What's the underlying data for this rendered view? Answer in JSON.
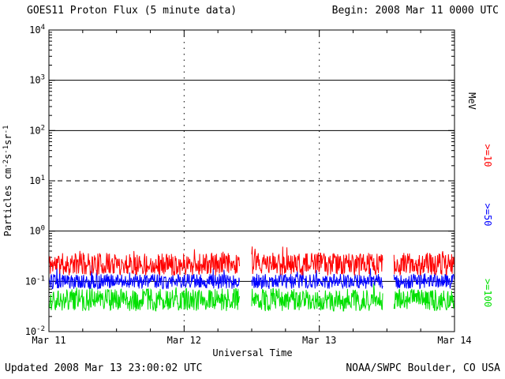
{
  "header": {
    "title": "GOES11 Proton Flux (5 minute data)",
    "begin_label": "Begin: 2008 Mar 11 0000 UTC"
  },
  "footer": {
    "updated": "Updated 2008 Mar 13 23:00:02 UTC",
    "credit": "NOAA/SWPC Boulder, CO USA"
  },
  "chart_data": {
    "type": "line",
    "title": "GOES11 Proton Flux (5 minute data)",
    "subtitle": "Begin: 2008 Mar 11 0000 UTC",
    "xlabel": "Universal Time",
    "ylabel": "Particles cm⁻²s⁻¹sr⁻¹",
    "ylabel_segments": [
      {
        "t": "Particles cm"
      },
      {
        "t": "-2",
        "sup": true
      },
      {
        "t": "s"
      },
      {
        "t": "-1",
        "sup": true
      },
      {
        "t": "sr"
      },
      {
        "t": "-1",
        "sup": true
      }
    ],
    "right_axis_unit": "MeV",
    "x_ticks": [
      "Mar 11",
      "Mar 12",
      "Mar 13",
      "Mar 14"
    ],
    "y_ticks": [
      {
        "base": "10",
        "exp": "4"
      },
      {
        "base": "10",
        "exp": "3"
      },
      {
        "base": "10",
        "exp": "2"
      },
      {
        "base": "10",
        "exp": "1"
      },
      {
        "base": "10",
        "exp": "0"
      },
      {
        "base": "10",
        "exp": "-1"
      },
      {
        "base": "10",
        "exp": "-2"
      }
    ],
    "ylog_range": [
      -2,
      4
    ],
    "yscale": "log",
    "x_range_days": 3,
    "points_per_day": 288,
    "grid": {
      "solid_decades": [
        3,
        2,
        0,
        -1
      ],
      "dashed_decades": [
        1
      ],
      "vertical_dotted_days": [
        1,
        2
      ]
    },
    "series": [
      {
        "label": ">=10",
        "unit": "MeV",
        "color": "#ff0000",
        "baseline_flux": 0.22,
        "noise_spread_decades": 0.45,
        "spike_prob": 0.03,
        "spike_decades": 0.15,
        "approx_range": [
          0.13,
          0.5
        ],
        "seed": 11
      },
      {
        "label": ">=50",
        "unit": "MeV",
        "color": "#0000ff",
        "baseline_flux": 0.1,
        "noise_spread_decades": 0.3,
        "spike_prob": 0.015,
        "spike_decades": 0.18,
        "approx_range": [
          0.07,
          0.18
        ],
        "seed": 52
      },
      {
        "label": ">=100",
        "unit": "MeV",
        "color": "#00e000",
        "baseline_flux": 0.043,
        "noise_spread_decades": 0.45,
        "spike_prob": 0.015,
        "spike_decades": 0.12,
        "approx_range": [
          0.024,
          0.09
        ],
        "seed": 103
      }
    ],
    "data_gaps_days": [
      [
        1.41,
        1.5
      ],
      [
        2.47,
        2.55
      ]
    ]
  }
}
